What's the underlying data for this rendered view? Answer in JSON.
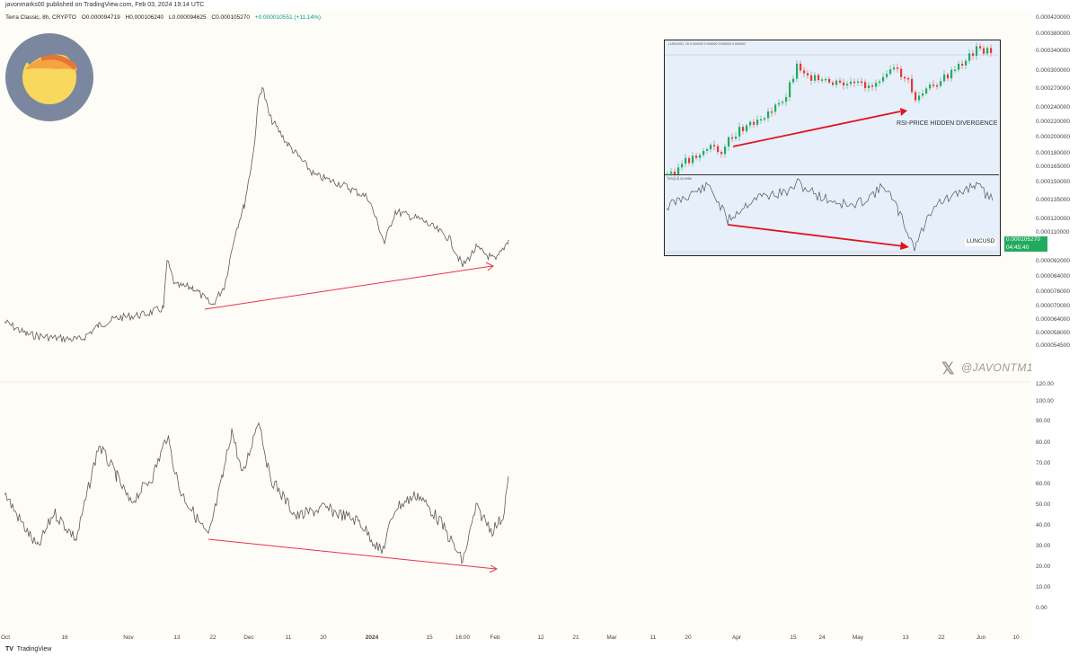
{
  "header": {
    "published": "javonmarks00 published on TradingView.com, Feb 03, 2024 19:14 UTC"
  },
  "legend": {
    "symbol": "Terra Classic, 8h, CRYPTO",
    "open": "O0.000094719",
    "high": "H0.000106240",
    "low": "L0.000094625",
    "close": "C0.000105270",
    "change": "+0.000010551 (+11.14%)"
  },
  "price_axis": [
    "0.000420000",
    "0.000380000",
    "0.000340000",
    "0.000300000",
    "0.000270000",
    "0.000240000",
    "0.000220000",
    "0.000200000",
    "0.000180000",
    "0.000165000",
    "0.000150000",
    "0.000135000",
    "0.000120000",
    "0.000110000",
    "0.000092000",
    "0.000084000",
    "0.000076000",
    "0.000070000",
    "0.000064000",
    "0.000058000",
    "0.000054500"
  ],
  "rsi_axis": [
    "120.00",
    "100.00",
    "90.00",
    "80.00",
    "70.00",
    "60.00",
    "50.00",
    "40.00",
    "30.00",
    "20.00",
    "10.00",
    "0.00"
  ],
  "time_axis": [
    "Oct",
    "16",
    "Nov",
    "13",
    "22",
    "Dec",
    "11",
    "20",
    "2024",
    "15",
    "16:00",
    "Feb",
    "12",
    "21",
    "Mar",
    "11",
    "20",
    "Apr",
    "15",
    "24",
    "May",
    "13",
    "22",
    "Jun",
    "10"
  ],
  "price_tag": {
    "symbol": "LUNCUSD",
    "price": "0.000105270",
    "countdown": "04:45:40"
  },
  "watermark": "@JAVONTM1",
  "footer": {
    "brand": "TradingView"
  },
  "inset": {
    "title": "LUNCUSD, 1D  0.000000  0.000000  0.000000  0.000000",
    "rsi_title": "RSI(14) 34.9956",
    "label": "RSI-PRICE HIDDEN DIVERGENCE"
  },
  "colors": {
    "up": "#22ab5e",
    "down": "#e53935",
    "arrow": "#e8334a",
    "line": "#5a5a5a",
    "inset_arrow": "#e0141e"
  },
  "chart_data": [
    {
      "type": "line",
      "title": "Terra Classic, 8h, CRYPTO — price",
      "x": [
        "Oct",
        "16",
        "Nov",
        "13",
        "22",
        "Dec",
        "11",
        "20",
        "2024",
        "15",
        "16:00",
        "Feb"
      ],
      "series": [
        {
          "values": [
            5.9e-05,
            5.6e-05,
            6.2e-05,
            8e-05,
            6.8e-05,
            0.00035,
            0.00022,
            0.00018,
            0.00015,
            0.00012,
            9.6e-05,
            0.0001053
          ]
        }
      ],
      "ylim": [
        5.4e-05,
        0.00042
      ]
    },
    {
      "type": "line",
      "title": "RSI",
      "x": [
        "Oct",
        "16",
        "Nov",
        "13",
        "22",
        "Dec",
        "11",
        "20",
        "2024",
        "15",
        "16:00",
        "Feb"
      ],
      "series": [
        {
          "values": [
            50,
            32,
            63,
            72,
            36,
            91,
            55,
            47,
            43,
            44,
            24,
            63
          ]
        }
      ],
      "ylim": [
        0,
        120
      ]
    }
  ]
}
